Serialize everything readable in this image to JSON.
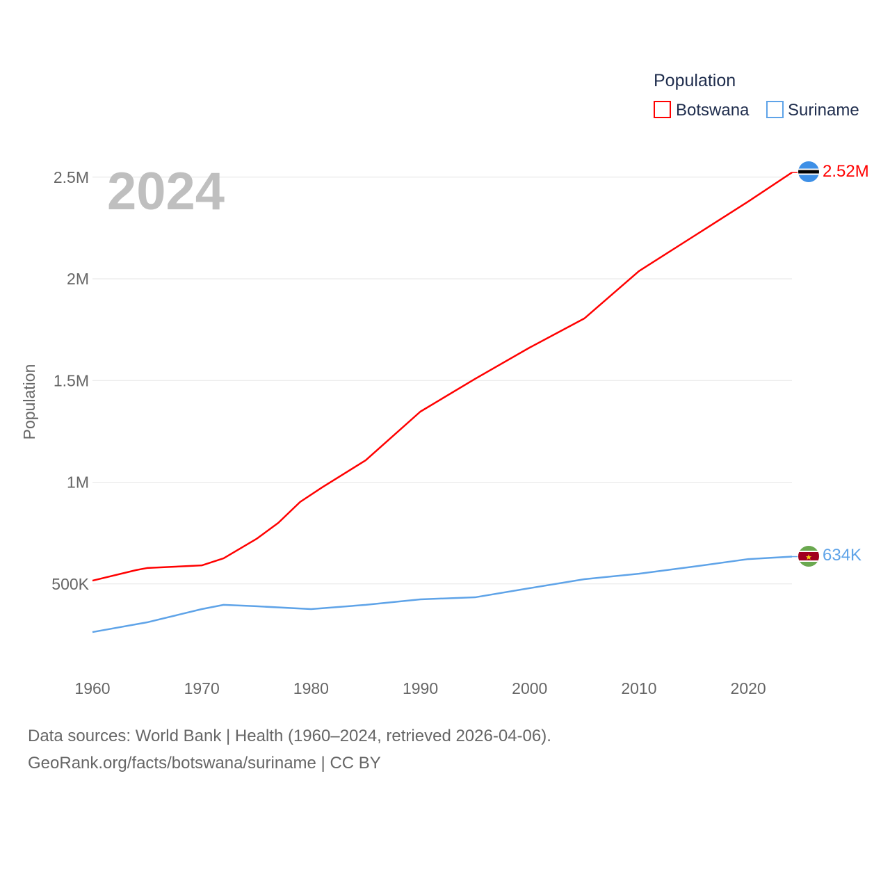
{
  "chart_data": {
    "type": "line",
    "title": "",
    "year_label": "2024",
    "xlabel": "",
    "ylabel": "Population",
    "xlim": [
      1960,
      2024
    ],
    "ylim": [
      0,
      2700000
    ],
    "x_ticks": [
      1960,
      1970,
      1980,
      1990,
      2000,
      2010,
      2020
    ],
    "x_tick_labels": [
      "1960",
      "1970",
      "1980",
      "1990",
      "2000",
      "2010",
      "2020"
    ],
    "y_ticks": [
      500000,
      1000000,
      1500000,
      2000000,
      2500000
    ],
    "y_tick_labels": [
      "500K",
      "1M",
      "1.5M",
      "2M",
      "2.5M"
    ],
    "grid": true,
    "legend": {
      "title": "Population",
      "placement": "top-right"
    },
    "series": [
      {
        "name": "Botswana",
        "color": "#ff0000",
        "end_label": "2.52M",
        "flag_icon": "botswana-flag",
        "x": [
          1960,
          1964,
          1965,
          1970,
          1972,
          1975,
          1977,
          1979,
          1981,
          1985,
          1990,
          1995,
          2000,
          2005,
          2010,
          2015,
          2020,
          2024
        ],
        "values": [
          516000,
          568000,
          578000,
          591000,
          626000,
          721000,
          800000,
          903000,
          974000,
          1108000,
          1347000,
          1508000,
          1662000,
          1805000,
          2038000,
          2209000,
          2380000,
          2523000
        ]
      },
      {
        "name": "Suriname",
        "color": "#5ea3e8",
        "end_label": "634K",
        "flag_icon": "suriname-flag",
        "x": [
          1960,
          1965,
          1970,
          1972,
          1975,
          1980,
          1985,
          1990,
          1995,
          2000,
          2005,
          2010,
          2015,
          2020,
          2024
        ],
        "values": [
          263000,
          311000,
          376000,
          397000,
          390000,
          376000,
          397000,
          424000,
          434000,
          479000,
          523000,
          550000,
          585000,
          622000,
          634000
        ]
      }
    ]
  },
  "footer": {
    "line1": "Data sources: World Bank | Health (1960–2024, retrieved 2026-04-06).",
    "line2": "GeoRank.org/facts/botswana/suriname | CC BY"
  }
}
